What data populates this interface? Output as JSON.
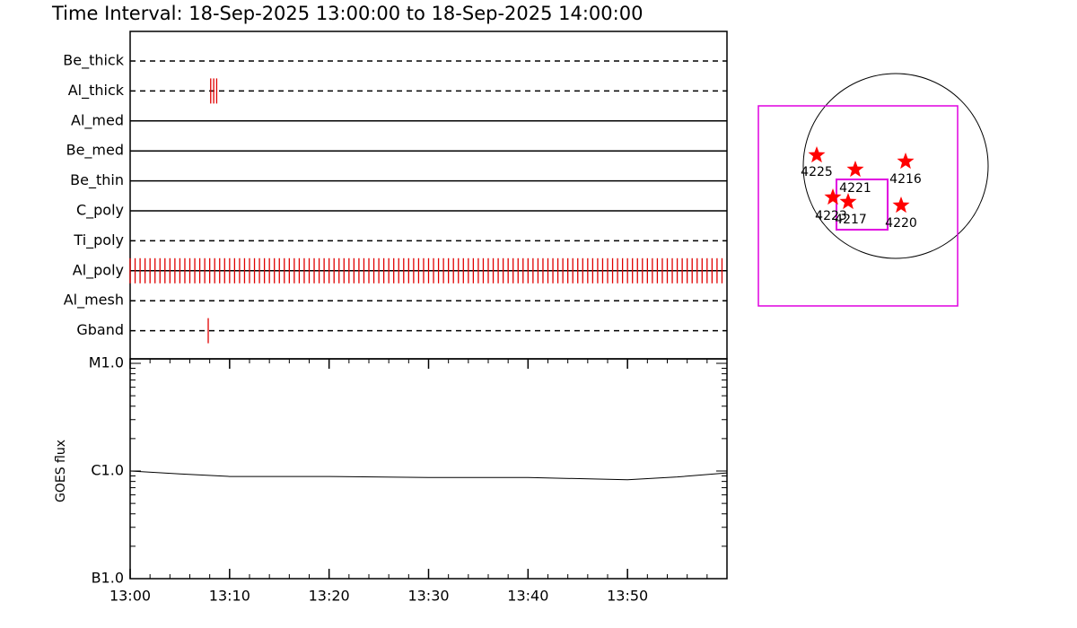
{
  "title": "Time Interval: 18-Sep-2025 13:00:00 to 18-Sep-2025 14:00:00",
  "chart_data": [
    {
      "type": "timeline",
      "xlim": [
        0,
        60
      ],
      "color": "#e00000",
      "rows": [
        {
          "name": "Be_thick",
          "line": "dashed",
          "events": []
        },
        {
          "name": "Al_thick",
          "line": "dashed",
          "events": [
            8.1,
            8.4,
            8.7
          ]
        },
        {
          "name": "Al_med",
          "line": "solid",
          "events": []
        },
        {
          "name": "Be_med",
          "line": "solid",
          "events": []
        },
        {
          "name": "Be_thin",
          "line": "solid",
          "events": []
        },
        {
          "name": "C_poly",
          "line": "solid",
          "events": []
        },
        {
          "name": "Ti_poly",
          "line": "dashed",
          "events": []
        },
        {
          "name": "Al_poly",
          "line": "solid",
          "events": [
            0,
            0.5,
            1,
            1.5,
            2,
            2.5,
            3,
            3.5,
            4,
            4.5,
            5,
            5.5,
            6,
            6.5,
            7,
            7.5,
            8,
            8.5,
            9,
            9.5,
            10,
            10.5,
            11,
            11.5,
            12,
            12.5,
            13,
            13.5,
            14,
            14.5,
            15,
            15.5,
            16,
            16.5,
            17,
            17.5,
            18,
            18.5,
            19,
            19.5,
            20,
            20.5,
            21,
            21.5,
            22,
            22.5,
            23,
            23.5,
            24,
            24.5,
            25,
            25.5,
            26,
            26.5,
            27,
            27.5,
            28,
            28.5,
            29,
            29.5,
            30,
            30.5,
            31,
            31.5,
            32,
            32.5,
            33,
            33.5,
            34,
            34.5,
            35,
            35.5,
            36,
            36.5,
            37,
            37.5,
            38,
            38.5,
            39,
            39.5,
            40,
            40.5,
            41,
            41.5,
            42,
            42.5,
            43,
            43.5,
            44,
            44.5,
            45,
            45.5,
            46,
            46.5,
            47,
            47.5,
            48,
            48.5,
            49,
            49.5,
            50,
            50.5,
            51,
            51.5,
            52,
            52.5,
            53,
            53.5,
            54,
            54.5,
            55,
            55.5,
            56,
            56.5,
            57,
            57.5,
            58,
            58.5,
            59,
            59.5
          ]
        },
        {
          "name": "Al_mesh",
          "line": "dashed",
          "events": []
        },
        {
          "name": "Gband",
          "line": "dashed",
          "events": [
            7.85
          ]
        }
      ]
    },
    {
      "type": "line",
      "ylabel": "GOES flux",
      "ylog": true,
      "color": "#000000",
      "xlim": [
        0,
        60
      ],
      "xticks": [
        {
          "value": 0,
          "label": "13:00"
        },
        {
          "value": 10,
          "label": "13:10"
        },
        {
          "value": 20,
          "label": "13:20"
        },
        {
          "value": 30,
          "label": "13:30"
        },
        {
          "value": 40,
          "label": "13:40"
        },
        {
          "value": 50,
          "label": "13:50"
        }
      ],
      "ylim": [
        1e-07,
        1e-05
      ],
      "yticks": [
        {
          "value": 1e-07,
          "label": "B1.0"
        },
        {
          "value": 1e-06,
          "label": "C1.0"
        },
        {
          "value": 1e-05,
          "label": "M1.0"
        }
      ],
      "x": [
        0,
        5,
        10,
        20,
        30,
        40,
        50,
        55,
        60
      ],
      "values": [
        1e-06,
        9.4e-07,
        8.9e-07,
        8.9e-07,
        8.7e-07,
        8.7e-07,
        8.3e-07,
        8.8e-07,
        9.6e-07
      ]
    },
    {
      "type": "map",
      "color": "#ff0000",
      "regions": [
        "4225",
        "4221",
        "4216",
        "4223",
        "4217",
        "4220"
      ]
    }
  ]
}
